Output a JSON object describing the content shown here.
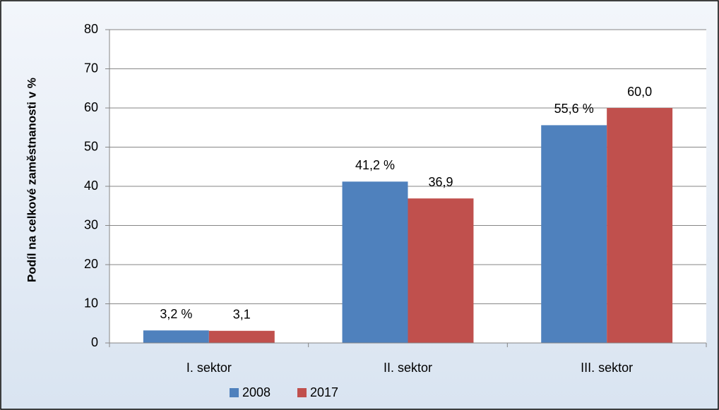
{
  "chart_data": {
    "type": "bar",
    "y_label": "Podíl na celkové zaměstnanosti v %",
    "categories": [
      "I. sektor",
      "II. sektor",
      "III. sektor"
    ],
    "series": [
      {
        "name": "2008",
        "color": "#4f81bd",
        "values": [
          3.2,
          41.2,
          55.6
        ],
        "value_labels": [
          "3,2 %",
          "41,2 %",
          "55,6 %"
        ]
      },
      {
        "name": "2017",
        "color": "#c0504d",
        "values": [
          3.1,
          36.9,
          60.0
        ],
        "value_labels": [
          "3,1",
          "36,9",
          "60,0"
        ]
      }
    ],
    "ylim": [
      0,
      80
    ],
    "yticks": [
      0,
      10,
      20,
      30,
      40,
      50,
      60,
      70,
      80
    ],
    "grid": true,
    "legend": "bottom"
  }
}
